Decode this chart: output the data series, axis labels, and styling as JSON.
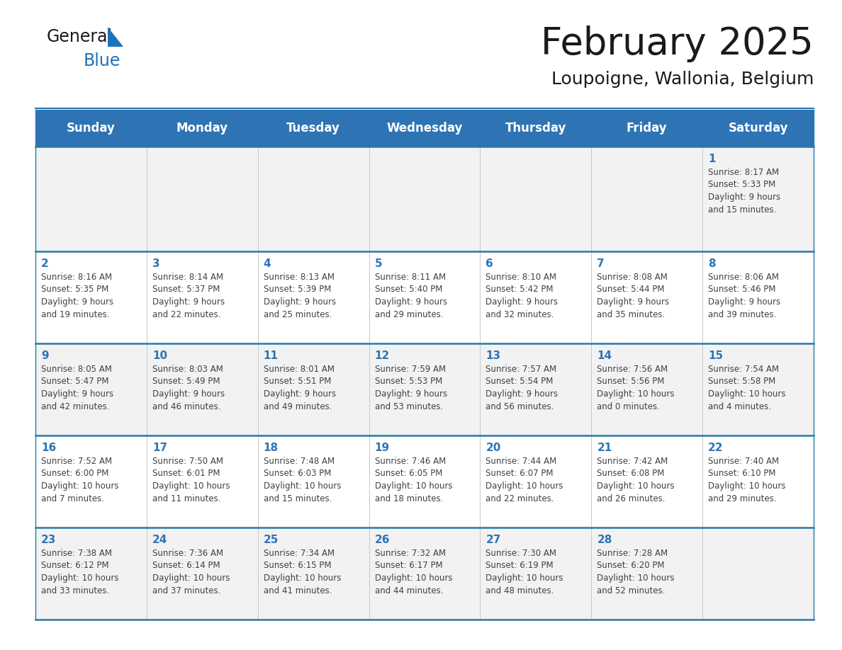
{
  "title": "February 2025",
  "subtitle": "Loupoigne, Wallonia, Belgium",
  "days_of_week": [
    "Sunday",
    "Monday",
    "Tuesday",
    "Wednesday",
    "Thursday",
    "Friday",
    "Saturday"
  ],
  "header_bg": "#2E74B5",
  "header_text": "#FFFFFF",
  "row_bg_odd": "#F2F2F2",
  "row_bg_even": "#FFFFFF",
  "separator_color": "#2779AA",
  "day_text_color": "#2E74B5",
  "info_text_color": "#404040",
  "calendar_data": [
    [
      null,
      null,
      null,
      null,
      null,
      null,
      {
        "day": "1",
        "sunrise": "8:17 AM",
        "sunset": "5:33 PM",
        "daylight_h": "9 hours",
        "daylight_m": "15 minutes"
      }
    ],
    [
      {
        "day": "2",
        "sunrise": "8:16 AM",
        "sunset": "5:35 PM",
        "daylight_h": "9 hours",
        "daylight_m": "19 minutes"
      },
      {
        "day": "3",
        "sunrise": "8:14 AM",
        "sunset": "5:37 PM",
        "daylight_h": "9 hours",
        "daylight_m": "22 minutes"
      },
      {
        "day": "4",
        "sunrise": "8:13 AM",
        "sunset": "5:39 PM",
        "daylight_h": "9 hours",
        "daylight_m": "25 minutes"
      },
      {
        "day": "5",
        "sunrise": "8:11 AM",
        "sunset": "5:40 PM",
        "daylight_h": "9 hours",
        "daylight_m": "29 minutes"
      },
      {
        "day": "6",
        "sunrise": "8:10 AM",
        "sunset": "5:42 PM",
        "daylight_h": "9 hours",
        "daylight_m": "32 minutes"
      },
      {
        "day": "7",
        "sunrise": "8:08 AM",
        "sunset": "5:44 PM",
        "daylight_h": "9 hours",
        "daylight_m": "35 minutes"
      },
      {
        "day": "8",
        "sunrise": "8:06 AM",
        "sunset": "5:46 PM",
        "daylight_h": "9 hours",
        "daylight_m": "39 minutes"
      }
    ],
    [
      {
        "day": "9",
        "sunrise": "8:05 AM",
        "sunset": "5:47 PM",
        "daylight_h": "9 hours",
        "daylight_m": "42 minutes"
      },
      {
        "day": "10",
        "sunrise": "8:03 AM",
        "sunset": "5:49 PM",
        "daylight_h": "9 hours",
        "daylight_m": "46 minutes"
      },
      {
        "day": "11",
        "sunrise": "8:01 AM",
        "sunset": "5:51 PM",
        "daylight_h": "9 hours",
        "daylight_m": "49 minutes"
      },
      {
        "day": "12",
        "sunrise": "7:59 AM",
        "sunset": "5:53 PM",
        "daylight_h": "9 hours",
        "daylight_m": "53 minutes"
      },
      {
        "day": "13",
        "sunrise": "7:57 AM",
        "sunset": "5:54 PM",
        "daylight_h": "9 hours",
        "daylight_m": "56 minutes"
      },
      {
        "day": "14",
        "sunrise": "7:56 AM",
        "sunset": "5:56 PM",
        "daylight_h": "10 hours",
        "daylight_m": "0 minutes"
      },
      {
        "day": "15",
        "sunrise": "7:54 AM",
        "sunset": "5:58 PM",
        "daylight_h": "10 hours",
        "daylight_m": "4 minutes"
      }
    ],
    [
      {
        "day": "16",
        "sunrise": "7:52 AM",
        "sunset": "6:00 PM",
        "daylight_h": "10 hours",
        "daylight_m": "7 minutes"
      },
      {
        "day": "17",
        "sunrise": "7:50 AM",
        "sunset": "6:01 PM",
        "daylight_h": "10 hours",
        "daylight_m": "11 minutes"
      },
      {
        "day": "18",
        "sunrise": "7:48 AM",
        "sunset": "6:03 PM",
        "daylight_h": "10 hours",
        "daylight_m": "15 minutes"
      },
      {
        "day": "19",
        "sunrise": "7:46 AM",
        "sunset": "6:05 PM",
        "daylight_h": "10 hours",
        "daylight_m": "18 minutes"
      },
      {
        "day": "20",
        "sunrise": "7:44 AM",
        "sunset": "6:07 PM",
        "daylight_h": "10 hours",
        "daylight_m": "22 minutes"
      },
      {
        "day": "21",
        "sunrise": "7:42 AM",
        "sunset": "6:08 PM",
        "daylight_h": "10 hours",
        "daylight_m": "26 minutes"
      },
      {
        "day": "22",
        "sunrise": "7:40 AM",
        "sunset": "6:10 PM",
        "daylight_h": "10 hours",
        "daylight_m": "29 minutes"
      }
    ],
    [
      {
        "day": "23",
        "sunrise": "7:38 AM",
        "sunset": "6:12 PM",
        "daylight_h": "10 hours",
        "daylight_m": "33 minutes"
      },
      {
        "day": "24",
        "sunrise": "7:36 AM",
        "sunset": "6:14 PM",
        "daylight_h": "10 hours",
        "daylight_m": "37 minutes"
      },
      {
        "day": "25",
        "sunrise": "7:34 AM",
        "sunset": "6:15 PM",
        "daylight_h": "10 hours",
        "daylight_m": "41 minutes"
      },
      {
        "day": "26",
        "sunrise": "7:32 AM",
        "sunset": "6:17 PM",
        "daylight_h": "10 hours",
        "daylight_m": "44 minutes"
      },
      {
        "day": "27",
        "sunrise": "7:30 AM",
        "sunset": "6:19 PM",
        "daylight_h": "10 hours",
        "daylight_m": "48 minutes"
      },
      {
        "day": "28",
        "sunrise": "7:28 AM",
        "sunset": "6:20 PM",
        "daylight_h": "10 hours",
        "daylight_m": "52 minutes"
      },
      null
    ]
  ],
  "logo_color_general": "#1a1a1a",
  "logo_color_blue": "#1e72b8",
  "logo_triangle_color": "#1e72b8",
  "title_color": "#1a1a1a",
  "subtitle_color": "#1a1a1a"
}
